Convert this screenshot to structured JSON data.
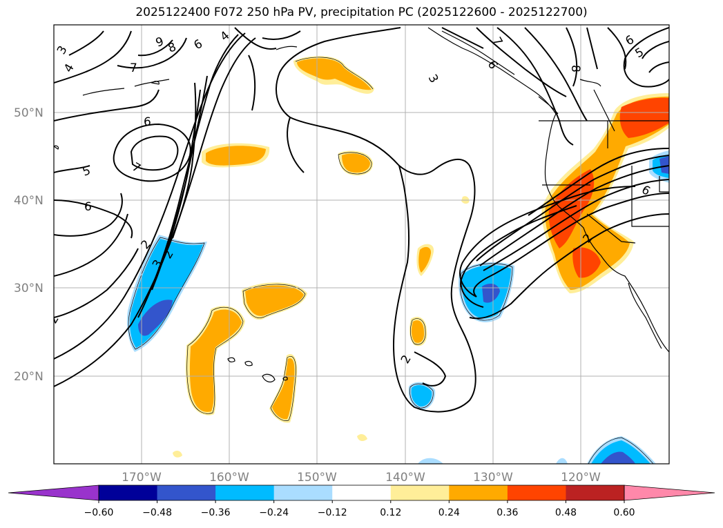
{
  "title": "2025122400 F072 250 hPa PV, precipitation PC (2025122600 - 2025122700)",
  "map": {
    "lon_range": [
      -180,
      -110
    ],
    "lat_range": [
      10,
      60
    ],
    "lat_ticks": [
      {
        "value": 20,
        "label": "20°N"
      },
      {
        "value": 30,
        "label": "30°N"
      },
      {
        "value": 40,
        "label": "40°N"
      },
      {
        "value": 50,
        "label": "50°N"
      }
    ],
    "lon_ticks": [
      {
        "value": -170,
        "label": "170°W"
      },
      {
        "value": -160,
        "label": "160°W"
      },
      {
        "value": -150,
        "label": "150°W"
      },
      {
        "value": -140,
        "label": "140°W"
      },
      {
        "value": -130,
        "label": "130°W"
      },
      {
        "value": -120,
        "label": "120°W"
      }
    ]
  },
  "pv_contour_labels": [
    "3",
    "4",
    "9",
    "8",
    "6",
    "4",
    "6",
    "7",
    "7",
    "6",
    "6",
    "5",
    "8",
    "6",
    "5",
    "7",
    "6",
    "3",
    "2",
    "2",
    "3",
    "2",
    "2",
    "2"
  ],
  "colorbar": {
    "colors": [
      "#9933cc",
      "#000099",
      "#3355cc",
      "#00bbff",
      "#aaddff",
      "#ffffff",
      "#ffee99",
      "#ffaa00",
      "#ff4400",
      "#bb2222",
      "#ff88aa"
    ],
    "tick_labels": [
      "−0.60",
      "−0.48",
      "−0.36",
      "−0.24",
      "−0.12",
      "0.12",
      "0.24",
      "0.36",
      "0.48",
      "0.60"
    ]
  },
  "chart_data": {
    "type": "map-contour",
    "title": "2025122400 F072 250 hPa PV, precipitation PC (2025122600 - 2025122700)",
    "variables": [
      "250 hPa PV (contours)",
      "precipitation PC (shaded)"
    ],
    "shading_levels": [
      -0.6,
      -0.48,
      -0.36,
      -0.24,
      -0.12,
      0.12,
      0.24,
      0.36,
      0.48,
      0.6
    ]
  }
}
